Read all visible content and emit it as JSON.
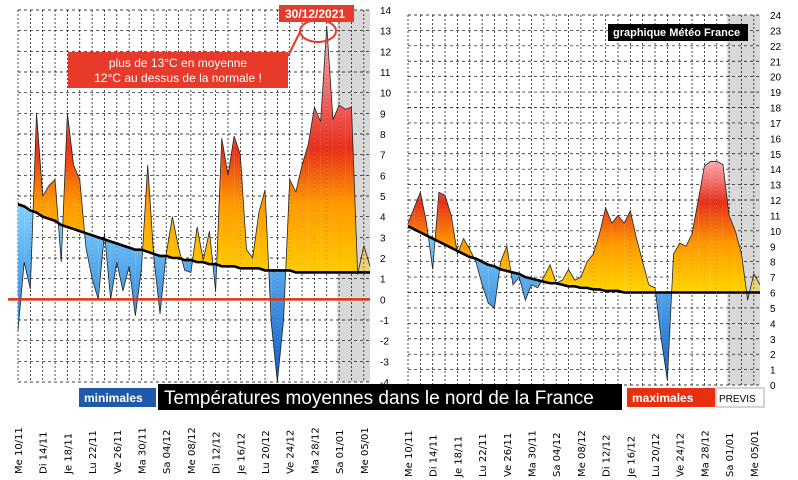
{
  "banner": {
    "title": "Températures moyennes dans le nord de la France",
    "legend_min": "minimales",
    "legend_max": "maximales",
    "forecast_label": "PREVIS",
    "credit": "graphique Météo France"
  },
  "annotation": {
    "date": "30/12/2021",
    "line1": "plus de 13°C en moyenne",
    "line2": "12°C au dessus de la normale !"
  },
  "colors": {
    "warm_low": "#ffe000",
    "warm_mid": "#ff9a00",
    "warm_high": "#e8301a",
    "warm_peak": "#ff9aa8",
    "cold_top": "#7fd3ff",
    "cold_bottom": "#1560c8",
    "zero_line": "#e83010",
    "annotation_box": "#e83a2a",
    "banner_bg": "#000000",
    "forecast_shade": "#d8d8d8"
  },
  "chart_data": [
    {
      "type": "area",
      "series_role": "minimales",
      "x": [
        "10/11",
        "11/11",
        "12/11",
        "13/11",
        "14/11",
        "15/11",
        "16/11",
        "17/11",
        "18/11",
        "19/11",
        "20/11",
        "21/11",
        "22/11",
        "23/11",
        "24/11",
        "25/11",
        "26/11",
        "27/11",
        "28/11",
        "29/11",
        "30/11",
        "01/12",
        "02/12",
        "03/12",
        "04/12",
        "05/12",
        "06/12",
        "07/12",
        "08/12",
        "09/12",
        "10/12",
        "11/12",
        "12/12",
        "13/12",
        "14/12",
        "15/12",
        "16/12",
        "17/12",
        "18/12",
        "19/12",
        "20/12",
        "21/12",
        "22/12",
        "23/12",
        "24/12",
        "25/12",
        "26/12",
        "27/12",
        "28/12",
        "29/12",
        "30/12",
        "31/12",
        "01/01",
        "02/01",
        "03/01",
        "04/01",
        "05/01",
        "06/01"
      ],
      "x_tick_labels": [
        "Me 10/11",
        "Di 14/11",
        "Je 18/11",
        "Lu 22/11",
        "Ve 26/11",
        "Ma 30/11",
        "Sa 04/12",
        "Me 08/12",
        "Di 12/12",
        "Je 16/12",
        "Lu 20/12",
        "Ve 24/12",
        "Ma 28/12",
        "Sa 01/01",
        "Me 05/01"
      ],
      "series": [
        {
          "name": "minimales",
          "values": [
            -1.5,
            1.8,
            0.5,
            9.0,
            5.0,
            5.5,
            5.8,
            1.8,
            9.0,
            6.5,
            5.8,
            2.5,
            1.0,
            0.0,
            3.2,
            0.0,
            1.8,
            0.4,
            1.6,
            -0.8,
            1.5,
            6.5,
            2.0,
            -0.7,
            2.2,
            4.0,
            2.5,
            1.4,
            1.3,
            3.5,
            1.9,
            3.3,
            0.4,
            7.8,
            6.0,
            7.9,
            7.0,
            2.4,
            2.0,
            4.2,
            5.3,
            -1.1,
            -4.0,
            -1.0,
            5.8,
            5.2,
            6.5,
            7.5,
            9.3,
            8.6,
            13.2,
            8.7,
            9.4,
            9.2,
            9.3,
            1.2,
            2.6,
            1.6
          ]
        },
        {
          "name": "normale",
          "values": [
            4.6,
            4.5,
            4.3,
            4.2,
            4.0,
            3.9,
            3.8,
            3.6,
            3.5,
            3.4,
            3.3,
            3.2,
            3.1,
            3.0,
            2.9,
            2.8,
            2.7,
            2.6,
            2.5,
            2.4,
            2.4,
            2.3,
            2.2,
            2.1,
            2.1,
            2.0,
            2.0,
            1.9,
            1.9,
            1.8,
            1.8,
            1.7,
            1.7,
            1.6,
            1.6,
            1.6,
            1.5,
            1.5,
            1.5,
            1.5,
            1.4,
            1.4,
            1.4,
            1.4,
            1.4,
            1.3,
            1.3,
            1.3,
            1.3,
            1.3,
            1.3,
            1.3,
            1.3,
            1.3,
            1.3,
            1.3,
            1.3,
            1.3
          ]
        }
      ],
      "forecast_from": "04/01",
      "ylim": [
        -4,
        14
      ],
      "y_ticks": [
        -4,
        -3,
        -2,
        -1,
        0,
        1,
        2,
        3,
        4,
        5,
        6,
        7,
        8,
        9,
        10,
        11,
        12,
        13,
        14
      ],
      "zero_line": 0,
      "grid": true
    },
    {
      "type": "area",
      "series_role": "maximales",
      "x": [
        "10/11",
        "11/11",
        "12/11",
        "13/11",
        "14/11",
        "15/11",
        "16/11",
        "17/11",
        "18/11",
        "19/11",
        "20/11",
        "21/11",
        "22/11",
        "23/11",
        "24/11",
        "25/11",
        "26/11",
        "27/11",
        "28/11",
        "29/11",
        "30/11",
        "01/12",
        "02/12",
        "03/12",
        "04/12",
        "05/12",
        "06/12",
        "07/12",
        "08/12",
        "09/12",
        "10/12",
        "11/12",
        "12/12",
        "13/12",
        "14/12",
        "15/12",
        "16/12",
        "17/12",
        "18/12",
        "19/12",
        "20/12",
        "21/12",
        "22/12",
        "23/12",
        "24/12",
        "25/12",
        "26/12",
        "27/12",
        "28/12",
        "29/12",
        "30/12",
        "31/12",
        "01/01",
        "02/01",
        "03/01",
        "04/01",
        "05/01",
        "06/01"
      ],
      "x_tick_labels": [
        "Me 10/11",
        "Di 14/11",
        "Je 18/11",
        "Lu 22/11",
        "Ve 26/11",
        "Ma 30/11",
        "Sa 04/12",
        "Me 08/12",
        "Di 12/12",
        "Je 16/12",
        "Lu 20/12",
        "Ve 24/12",
        "Ma 28/12",
        "Sa 01/01",
        "Me 05/01"
      ],
      "series": [
        {
          "name": "maximales",
          "values": [
            10.5,
            11.5,
            12.5,
            10.5,
            7.5,
            12.5,
            12.3,
            11.0,
            8.5,
            9.5,
            8.8,
            8.0,
            6.5,
            5.3,
            5.0,
            8.0,
            9.0,
            6.5,
            7.0,
            5.5,
            6.5,
            6.3,
            7.0,
            7.8,
            6.6,
            6.8,
            7.5,
            6.8,
            7.0,
            8.0,
            8.5,
            9.8,
            11.5,
            10.5,
            11.0,
            10.5,
            11.3,
            9.5,
            8.0,
            6.5,
            6.3,
            3.0,
            0.3,
            8.5,
            9.2,
            9.0,
            9.8,
            12.0,
            14.2,
            14.5,
            14.5,
            14.3,
            11.0,
            10.0,
            8.5,
            5.5,
            7.2,
            6.5
          ]
        },
        {
          "name": "normale",
          "values": [
            10.3,
            10.1,
            9.9,
            9.7,
            9.5,
            9.3,
            9.1,
            8.9,
            8.7,
            8.5,
            8.3,
            8.2,
            8.0,
            7.8,
            7.7,
            7.5,
            7.4,
            7.3,
            7.2,
            7.0,
            6.9,
            6.8,
            6.7,
            6.6,
            6.6,
            6.5,
            6.4,
            6.4,
            6.3,
            6.3,
            6.2,
            6.2,
            6.1,
            6.1,
            6.1,
            6.0,
            6.0,
            6.0,
            6.0,
            6.0,
            6.0,
            6.0,
            6.0,
            6.0,
            6.0,
            6.0,
            6.0,
            6.0,
            6.0,
            6.0,
            6.0,
            6.0,
            6.0,
            6.0,
            6.0,
            6.0,
            6.0,
            6.0
          ]
        }
      ],
      "forecast_from": "04/01",
      "ylim": [
        0,
        24
      ],
      "y_ticks": [
        0,
        1,
        2,
        3,
        4,
        5,
        6,
        7,
        8,
        9,
        10,
        11,
        12,
        13,
        14,
        15,
        16,
        17,
        18,
        19,
        20,
        21,
        22,
        23,
        24
      ],
      "grid": true
    }
  ]
}
